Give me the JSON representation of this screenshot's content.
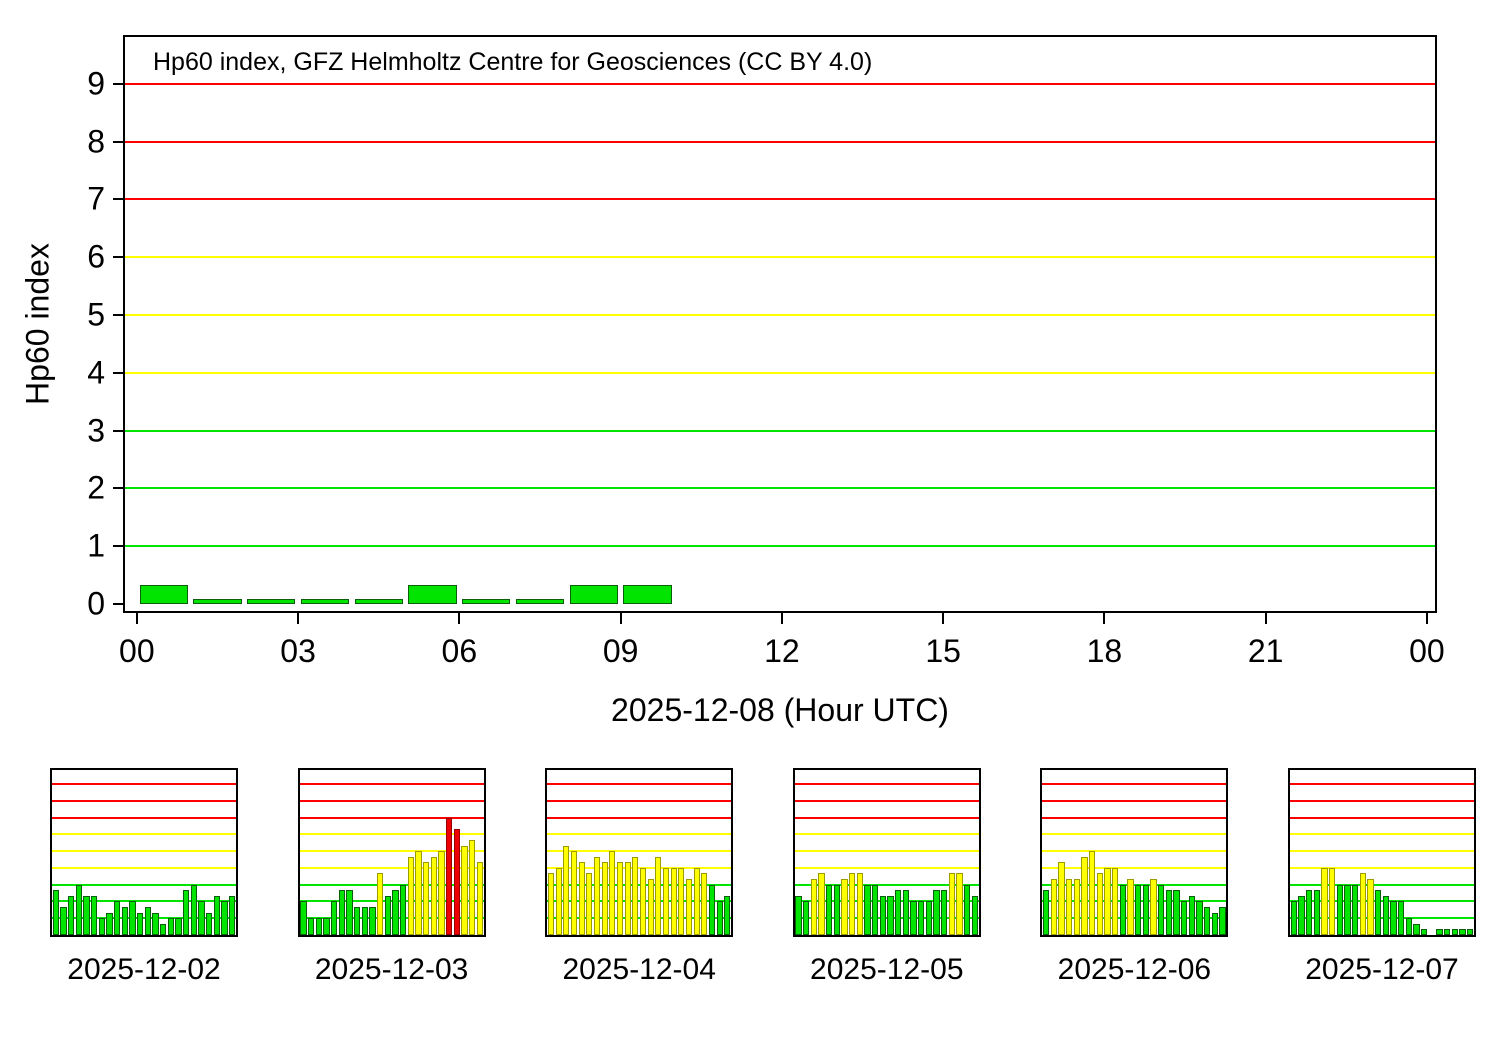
{
  "page": {
    "background": "#FFFFFF"
  },
  "colors": {
    "axis": "#000000",
    "bar_green": "#00E400",
    "edge_green": "#0B5E0B",
    "bar_yellow": "#FFFF00",
    "edge_yellow": "#9C9C00",
    "bar_red": "#EE0000",
    "edge_red": "#990000",
    "grid_green": "#00E400",
    "grid_yellow": "#FFFF00",
    "grid_red": "#FF0000",
    "thresholds": {
      "yellow_min": 3.2,
      "red_min": 5.9,
      "grid_yellow_min": 3.5,
      "grid_red_min": 6.5
    }
  },
  "chart_data": [
    {
      "id": "main",
      "type": "bar",
      "title": "Hp60 index, GFZ Helmholtz Centre for Geosciences (CC BY 4.0)",
      "xlabel": "2025-12-08 (Hour UTC)",
      "ylabel": "Hp60 index",
      "start_hour": 0,
      "values": [
        0.33,
        0,
        0,
        0,
        0,
        0.33,
        0,
        0,
        0.33,
        0.33
      ],
      "hours_plotted": "00:00-09:00 UTC, no data after 10:00",
      "xlim": [
        -0.22,
        24.15
      ],
      "ylim": [
        -0.12,
        9.81
      ],
      "grid_values": [
        1,
        2,
        3,
        4,
        5,
        6,
        7,
        8,
        9
      ],
      "grid_on": true,
      "legend": "none",
      "bar_width": 0.9,
      "min_value": 0.08,
      "x_tick_hours": [
        0,
        3,
        6,
        9,
        12,
        15,
        18,
        21,
        24
      ],
      "x_tick_labels": [
        "00",
        "03",
        "06",
        "09",
        "12",
        "15",
        "18",
        "21",
        "00"
      ],
      "y_tick_values": [
        0,
        1,
        2,
        3,
        4,
        5,
        6,
        7,
        8,
        9
      ],
      "y_tick_labels": [
        "0",
        "1",
        "2",
        "3",
        "4",
        "5",
        "6",
        "7",
        "8",
        "9"
      ]
    },
    {
      "id": "mini-2025-12-02",
      "type": "bar",
      "label": "2025-12-02",
      "values": [
        2.67,
        1.67,
        2.33,
        3.0,
        2.33,
        2.33,
        1.0,
        1.33,
        2.0,
        1.67,
        2.0,
        1.33,
        1.67,
        1.33,
        0.67,
        1.0,
        1.0,
        2.67,
        3.0,
        2.0,
        1.33,
        2.33,
        2.0,
        2.33
      ],
      "xlim": [
        0,
        24
      ],
      "ylim": [
        0,
        9.83
      ],
      "grid_values": [
        1,
        2,
        3,
        4,
        5,
        6,
        7,
        8,
        9
      ],
      "bar_width": 0.82
    },
    {
      "id": "mini-2025-12-03",
      "type": "bar",
      "label": "2025-12-03",
      "values": [
        2.0,
        1.0,
        1.0,
        1.0,
        2.0,
        2.67,
        2.67,
        1.67,
        1.67,
        1.67,
        3.67,
        2.33,
        2.67,
        3.0,
        4.67,
        5.0,
        4.33,
        4.67,
        5.0,
        7.0,
        6.33,
        5.33,
        5.67,
        4.33
      ],
      "xlim": [
        0,
        24
      ],
      "ylim": [
        0,
        9.83
      ],
      "grid_values": [
        1,
        2,
        3,
        4,
        5,
        6,
        7,
        8,
        9
      ],
      "bar_width": 0.82
    },
    {
      "id": "mini-2025-12-04",
      "type": "bar",
      "label": "2025-12-04",
      "values": [
        3.67,
        4.0,
        5.33,
        5.0,
        4.33,
        3.67,
        4.67,
        4.33,
        5.0,
        4.33,
        4.33,
        4.67,
        4.0,
        3.33,
        4.67,
        4.0,
        4.0,
        4.0,
        3.33,
        4.0,
        3.67,
        3.0,
        2.0,
        2.33
      ],
      "xlim": [
        0,
        24
      ],
      "ylim": [
        0,
        9.83
      ],
      "grid_values": [
        1,
        2,
        3,
        4,
        5,
        6,
        7,
        8,
        9
      ],
      "bar_width": 0.82
    },
    {
      "id": "mini-2025-12-05",
      "type": "bar",
      "label": "2025-12-05",
      "values": [
        2.33,
        2.0,
        3.33,
        3.67,
        3.0,
        3.0,
        3.33,
        3.67,
        3.67,
        3.0,
        3.0,
        2.33,
        2.33,
        2.67,
        2.67,
        2.0,
        2.0,
        2.0,
        2.67,
        2.67,
        3.67,
        3.67,
        3.0,
        2.33
      ],
      "xlim": [
        0,
        24
      ],
      "ylim": [
        0,
        9.83
      ],
      "grid_values": [
        1,
        2,
        3,
        4,
        5,
        6,
        7,
        8,
        9
      ],
      "bar_width": 0.82
    },
    {
      "id": "mini-2025-12-06",
      "type": "bar",
      "label": "2025-12-06",
      "values": [
        2.67,
        3.33,
        4.33,
        3.33,
        3.33,
        4.67,
        5.0,
        3.67,
        4.0,
        4.0,
        3.0,
        3.33,
        3.0,
        3.0,
        3.33,
        3.0,
        2.67,
        2.67,
        2.0,
        2.33,
        2.0,
        1.67,
        1.33,
        1.67
      ],
      "xlim": [
        0,
        24
      ],
      "ylim": [
        0,
        9.83
      ],
      "grid_values": [
        1,
        2,
        3,
        4,
        5,
        6,
        7,
        8,
        9
      ],
      "bar_width": 0.82
    },
    {
      "id": "mini-2025-12-07",
      "type": "bar",
      "label": "2025-12-07",
      "values": [
        2.0,
        2.33,
        2.67,
        2.67,
        4.0,
        4.0,
        3.0,
        3.0,
        3.0,
        3.67,
        3.33,
        2.67,
        2.33,
        2.0,
        2.0,
        1.0,
        0.67,
        0.33,
        0,
        0.33,
        0.33,
        0.33,
        0.33,
        0.33
      ],
      "xlim": [
        0,
        24
      ],
      "ylim": [
        0,
        9.83
      ],
      "grid_values": [
        1,
        2,
        3,
        4,
        5,
        6,
        7,
        8,
        9
      ],
      "bar_width": 0.82
    }
  ]
}
